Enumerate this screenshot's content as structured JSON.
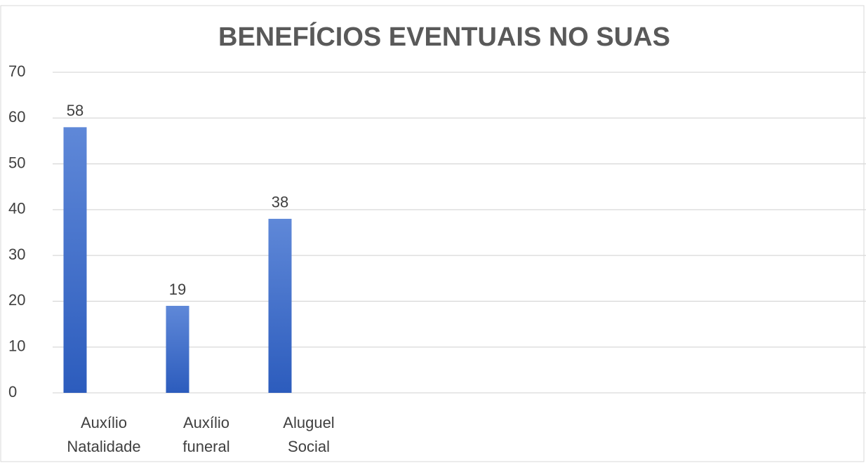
{
  "chart_data": {
    "type": "bar",
    "title": "BENEFÍCIOS EVENTUAIS NO SUAS",
    "categories": [
      "Auxílio Natalidade",
      "Auxílio funeral",
      "Aluguel Social"
    ],
    "values": [
      58,
      19,
      38
    ],
    "color": "#3a67c9",
    "ylim": [
      0,
      70
    ],
    "yticks": [
      0,
      10,
      20,
      30,
      40,
      50,
      60,
      70
    ],
    "grid": true
  }
}
